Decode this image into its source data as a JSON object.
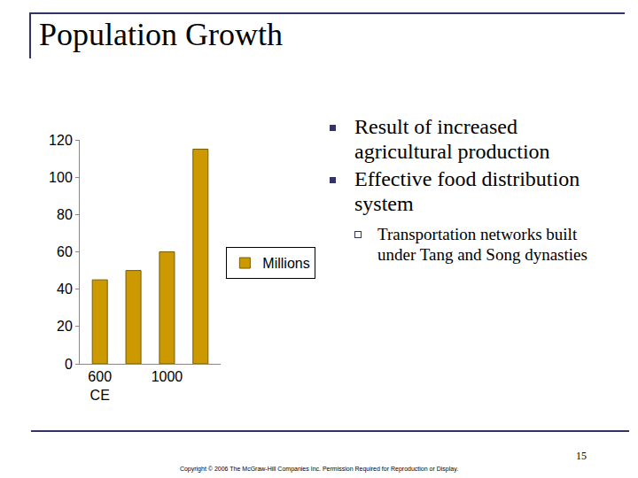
{
  "slide": {
    "title": "Population Growth",
    "bullets": [
      {
        "text": "Result of increased agricultural production"
      },
      {
        "text": "Effective food distribution system",
        "sub": [
          "Transportation networks built under Tang and Song dynasties"
        ]
      }
    ],
    "footer": "Copyright © 2006 The McGraw-Hill Companies Inc. Permission Required for Reproduction or Display.",
    "page": 15
  },
  "chart_data": {
    "type": "bar",
    "categories": [
      "600 CE",
      null,
      "1000",
      null
    ],
    "series": [
      {
        "name": "Millions",
        "color": "#CC9900",
        "values": [
          45,
          50,
          60,
          115
        ]
      }
    ],
    "ylim": [
      0,
      120
    ],
    "yticks": [
      0,
      20,
      40,
      60,
      80,
      100,
      120
    ],
    "grid": false,
    "legend": "right"
  }
}
